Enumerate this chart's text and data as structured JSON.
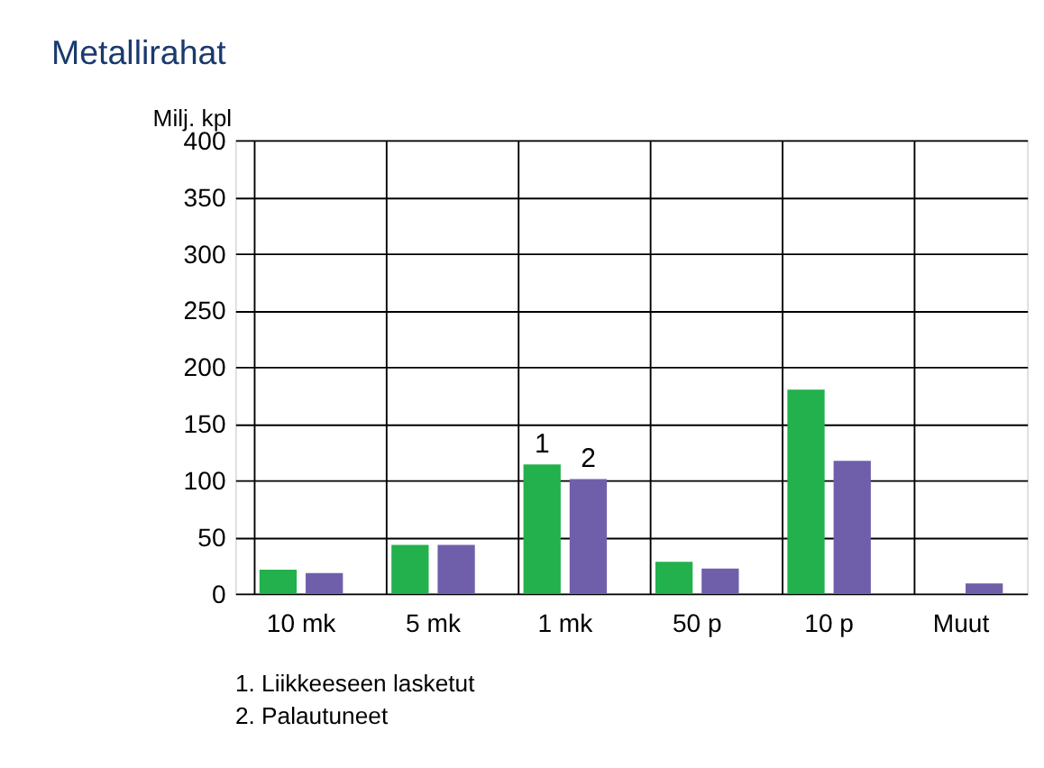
{
  "chart_data": {
    "type": "bar",
    "title": "Metallirahat",
    "ylabel": "Milj. kpl",
    "categories": [
      "10 mk",
      "5 mk",
      "1 mk",
      "50 p",
      "10 p",
      "Muut"
    ],
    "series": [
      {
        "color": "#22b14c",
        "values": [
          21,
          43,
          114,
          28,
          180,
          0
        ]
      },
      {
        "color": "#6f5fab",
        "values": [
          18,
          43,
          101,
          22,
          117,
          9
        ]
      }
    ],
    "ylim": [
      0,
      400
    ],
    "yticks": [
      0,
      50,
      100,
      150,
      200,
      250,
      300,
      350,
      400
    ],
    "grid": true,
    "legend": false,
    "annotations": [
      {
        "text": "1",
        "x": "1 mk",
        "y": 114
      },
      {
        "text": "2",
        "x": "1 mk",
        "y": 101
      },
      "1. Liikkeeseen lasketut",
      "2. Palautuneet"
    ]
  }
}
